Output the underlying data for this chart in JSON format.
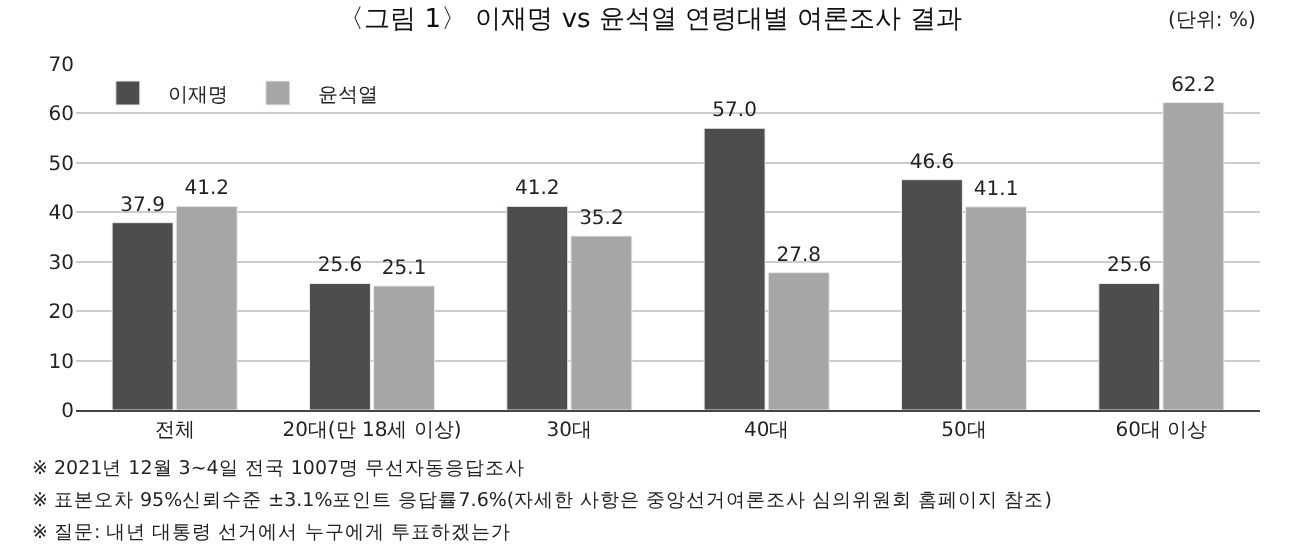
{
  "chart_data": {
    "type": "bar",
    "title": "〈그림 1〉 이재명 vs 윤석열 연령대별 여론조사 결과",
    "categories": [
      "전체",
      "20대(만 18세 이상)",
      "30대",
      "40대",
      "50대",
      "60대 이상"
    ],
    "series": [
      {
        "name": "이재명",
        "color": "#4d4d4d",
        "values": [
          37.9,
          25.6,
          41.2,
          57.0,
          46.6,
          25.6
        ],
        "value_labels": [
          "37.9",
          "25.6",
          "41.2",
          "57.0",
          "46.6",
          "25.6"
        ]
      },
      {
        "name": "윤석열",
        "color": "#a6a6a6",
        "values": [
          41.2,
          25.1,
          35.2,
          27.8,
          41.1,
          62.2
        ],
        "value_labels": [
          "41.2",
          "25.1",
          "35.2",
          "27.8",
          "41.1",
          "62.2"
        ]
      }
    ],
    "ylim": [
      0,
      70
    ],
    "yticks": [
      0,
      10,
      20,
      30,
      40,
      50,
      60,
      70
    ],
    "grid": "y",
    "legend": "top left",
    "annotations": [
      "(단위: %)",
      "※ 2021년 12월 3~4일 전국 1007명 무선자동응답조사",
      "※ 표본오차 95%신뢰수준 ±3.1%포인트 응답률7.6%(자세한 사항은 중앙선거여론조사 심의위원회 홈페이지 참조)",
      "※ 질문: 내년 대통령 선거에서 누구에게 투표하겠는가"
    ]
  }
}
